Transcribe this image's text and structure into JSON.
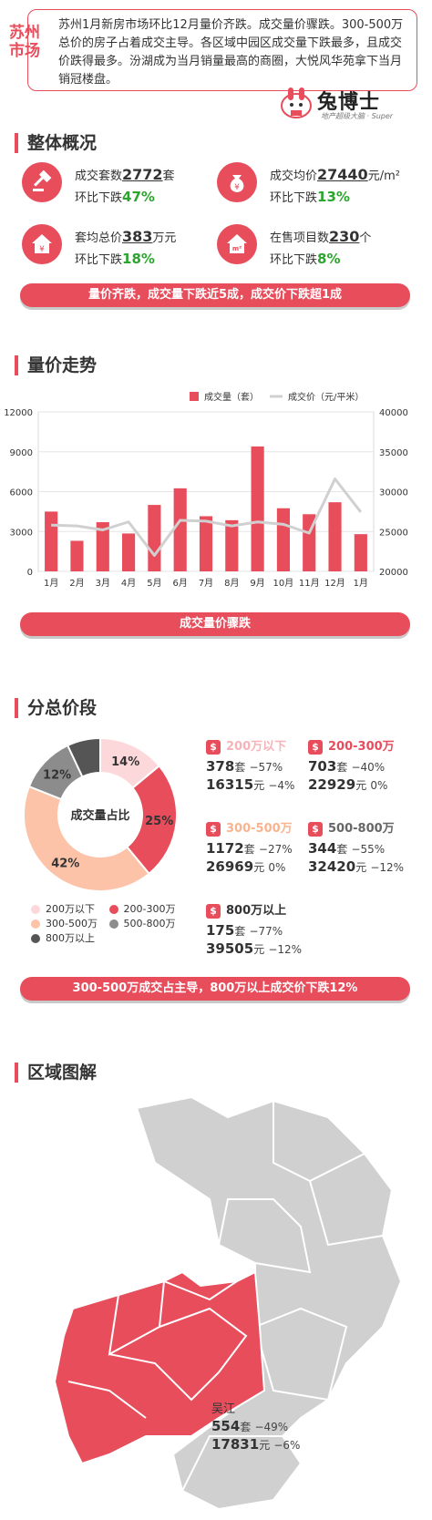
{
  "header": {
    "city_tag": "苏州市场",
    "summary": "苏州1月新房市场环比12月量价齐跌。成交量价骤跌。300-500万总价的房子占着成交主导。各区域中园区成交量下跌最多，且成交价跌得最多。汾湖成为当月销量最高的商圈，大悦风华苑拿下当月销冠楼盘。",
    "logo_text": "兔博士",
    "logo_sub": "地产超级大脑 · Super"
  },
  "overview": {
    "title": "整体概况",
    "stats": [
      {
        "label": "成交套数",
        "value": "2772",
        "unit": "套",
        "change_label": "环比下跌",
        "change": "47%",
        "icon": "gavel-icon"
      },
      {
        "label": "成交均价",
        "value": "27440",
        "unit": "元/m²",
        "change_label": "环比下跌",
        "change": "13%",
        "icon": "money-bag-icon"
      },
      {
        "label": "套均总价",
        "value": "383",
        "unit": "万元",
        "change_label": "环比下跌",
        "change": "18%",
        "icon": "house-yen-icon"
      },
      {
        "label": "在售项目数",
        "value": "230",
        "unit": "个",
        "change_label": "环比下跌",
        "change": "8%",
        "icon": "house-area-icon"
      }
    ],
    "banner": "量价齐跌，成交量下跌近5成，成交价下跌超1成"
  },
  "trend": {
    "title": "量价走势",
    "banner": "成交量价骤跌"
  },
  "chart_data": {
    "type": "bar",
    "categories": [
      "1月",
      "2月",
      "3月",
      "4月",
      "5月",
      "6月",
      "7月",
      "8月",
      "9月",
      "10月",
      "11月",
      "12月",
      "1月"
    ],
    "series": [
      {
        "name": "成交量（套）",
        "type": "bar",
        "axis": "left",
        "values": [
          4500,
          2300,
          3700,
          2850,
          5000,
          6250,
          4150,
          3850,
          9400,
          4750,
          4300,
          5200,
          2800
        ],
        "color": "#e84d5c"
      },
      {
        "name": "成交价（元/平米）",
        "type": "line",
        "axis": "right",
        "values": [
          25800,
          25700,
          25200,
          26200,
          22000,
          26400,
          26300,
          25700,
          26200,
          25900,
          24800,
          31600,
          27440
        ],
        "color": "#d0d0d0"
      }
    ],
    "y_left": {
      "min": 0,
      "max": 12000,
      "ticks": [
        "0",
        "3000",
        "6000",
        "9000",
        "12000"
      ]
    },
    "y_right": {
      "min": 20000,
      "max": 40000,
      "ticks": [
        "20000",
        "25000",
        "30000",
        "35000",
        "40000"
      ]
    },
    "legend_position": "top-right",
    "grid": true
  },
  "segments": {
    "title": "分总价段",
    "center_label": "成交量占比",
    "pie": [
      {
        "name": "200万以下",
        "value": 14,
        "label": "14%",
        "color": "#fdd8db"
      },
      {
        "name": "200-300万",
        "value": 25,
        "label": "25%",
        "color": "#e84d5c"
      },
      {
        "name": "300-500万",
        "value": 42,
        "label": "42%",
        "color": "#fcc3a8"
      },
      {
        "name": "500-800万",
        "value": 12,
        "label": "12%",
        "color": "#8c8c8c"
      },
      {
        "name": "800万以上",
        "value": 7,
        "label": "",
        "color": "#555555"
      }
    ],
    "details": [
      {
        "name": "200万以下",
        "name_color": "#f8b3b9",
        "count": "378",
        "count_unit": "套",
        "count_change": "−57%",
        "price": "16315",
        "price_unit": "元",
        "price_change": "−4%"
      },
      {
        "name": "200-300万",
        "name_color": "#e84d5c",
        "count": "703",
        "count_unit": "套",
        "count_change": "−40%",
        "price": "22929",
        "price_unit": "元",
        "price_change": "0%"
      },
      {
        "name": "300-500万",
        "name_color": "#f9b48f",
        "count": "1172",
        "count_unit": "套",
        "count_change": "−27%",
        "price": "26969",
        "price_unit": "元",
        "price_change": "0%"
      },
      {
        "name": "500-800万",
        "name_color": "#666666",
        "count": "344",
        "count_unit": "套",
        "count_change": "−55%",
        "price": "32420",
        "price_unit": "元",
        "price_change": "−12%"
      },
      {
        "name": "800万以上",
        "name_color": "#333333",
        "count": "175",
        "count_unit": "套",
        "count_change": "−77%",
        "price": "39505",
        "price_unit": "元",
        "price_change": "−12%"
      }
    ],
    "banner": "300-500万成交占主导，800万以上成交价下跌12%"
  },
  "region": {
    "title": "区域图解",
    "highlight": {
      "name": "吴江",
      "count": "554",
      "count_unit": "套",
      "count_change": "−49%",
      "price": "17831",
      "price_unit": "元",
      "price_change": "−6%"
    }
  },
  "colors": {
    "accent": "#e84d5c",
    "green": "#2ba52e",
    "gray": "#cfcfcf"
  }
}
